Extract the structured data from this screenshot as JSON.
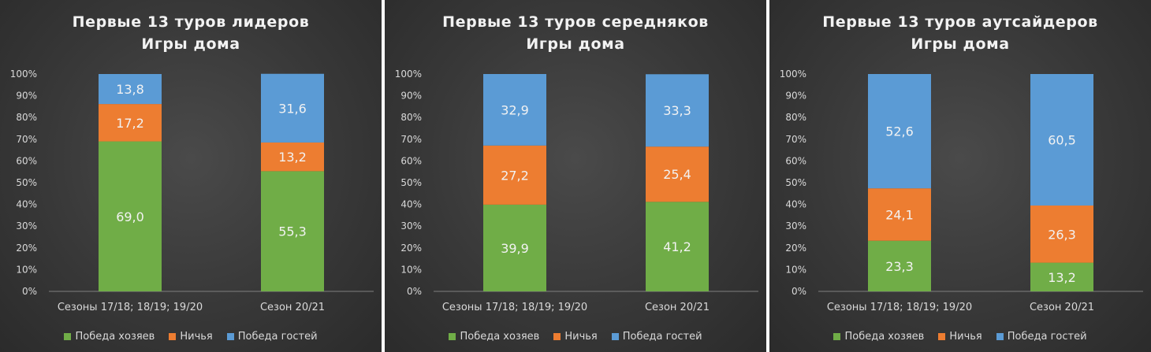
{
  "colors": {
    "home_win": "#70ad47",
    "draw": "#ed7d31",
    "away_win": "#5b9bd5"
  },
  "chart_data": [
    {
      "type": "bar",
      "stacked": true,
      "title_lines": [
        "Первые 13 туров лидеров",
        "Игры дома"
      ],
      "categories": [
        "Сезоны 17/18; 18/19; 19/20",
        "Сезон 20/21"
      ],
      "ylim": [
        0,
        100
      ],
      "yticks": [
        "0%",
        "10%",
        "20%",
        "30%",
        "40%",
        "50%",
        "60%",
        "70%",
        "80%",
        "90%",
        "100%"
      ],
      "legend_position": "bottom",
      "series": [
        {
          "name": "Победа хозяев",
          "values": [
            69.0,
            55.3
          ],
          "labels": [
            "69,0",
            "55,3"
          ]
        },
        {
          "name": "Ничья",
          "values": [
            17.2,
            13.2
          ],
          "labels": [
            "17,2",
            "13,2"
          ]
        },
        {
          "name": "Победа гостей",
          "values": [
            13.8,
            31.6
          ],
          "labels": [
            "13,8",
            "31,6"
          ]
        }
      ]
    },
    {
      "type": "bar",
      "stacked": true,
      "title_lines": [
        "Первые 13 туров середняков",
        "Игры дома"
      ],
      "categories": [
        "Сезоны 17/18; 18/19; 19/20",
        "Сезон 20/21"
      ],
      "ylim": [
        0,
        100
      ],
      "yticks": [
        "0%",
        "10%",
        "20%",
        "30%",
        "40%",
        "50%",
        "60%",
        "70%",
        "80%",
        "90%",
        "100%"
      ],
      "legend_position": "bottom",
      "series": [
        {
          "name": "Победа хозяев",
          "values": [
            39.9,
            41.2
          ],
          "labels": [
            "39,9",
            "41,2"
          ]
        },
        {
          "name": "Ничья",
          "values": [
            27.2,
            25.4
          ],
          "labels": [
            "27,2",
            "25,4"
          ]
        },
        {
          "name": "Победа гостей",
          "values": [
            32.9,
            33.3
          ],
          "labels": [
            "32,9",
            "33,3"
          ]
        }
      ]
    },
    {
      "type": "bar",
      "stacked": true,
      "title_lines": [
        "Первые 13 туров аутсайдеров",
        "Игры дома"
      ],
      "categories": [
        "Сезоны 17/18; 18/19; 19/20",
        "Сезон 20/21"
      ],
      "ylim": [
        0,
        100
      ],
      "yticks": [
        "0%",
        "10%",
        "20%",
        "30%",
        "40%",
        "50%",
        "60%",
        "70%",
        "80%",
        "90%",
        "100%"
      ],
      "legend_position": "bottom",
      "series": [
        {
          "name": "Победа хозяев",
          "values": [
            23.3,
            13.2
          ],
          "labels": [
            "23,3",
            "13,2"
          ]
        },
        {
          "name": "Ничья",
          "values": [
            24.1,
            26.3
          ],
          "labels": [
            "24,1",
            "26,3"
          ]
        },
        {
          "name": "Победа гостей",
          "values": [
            52.6,
            60.5
          ],
          "labels": [
            "52,6",
            "60,5"
          ]
        }
      ]
    }
  ]
}
